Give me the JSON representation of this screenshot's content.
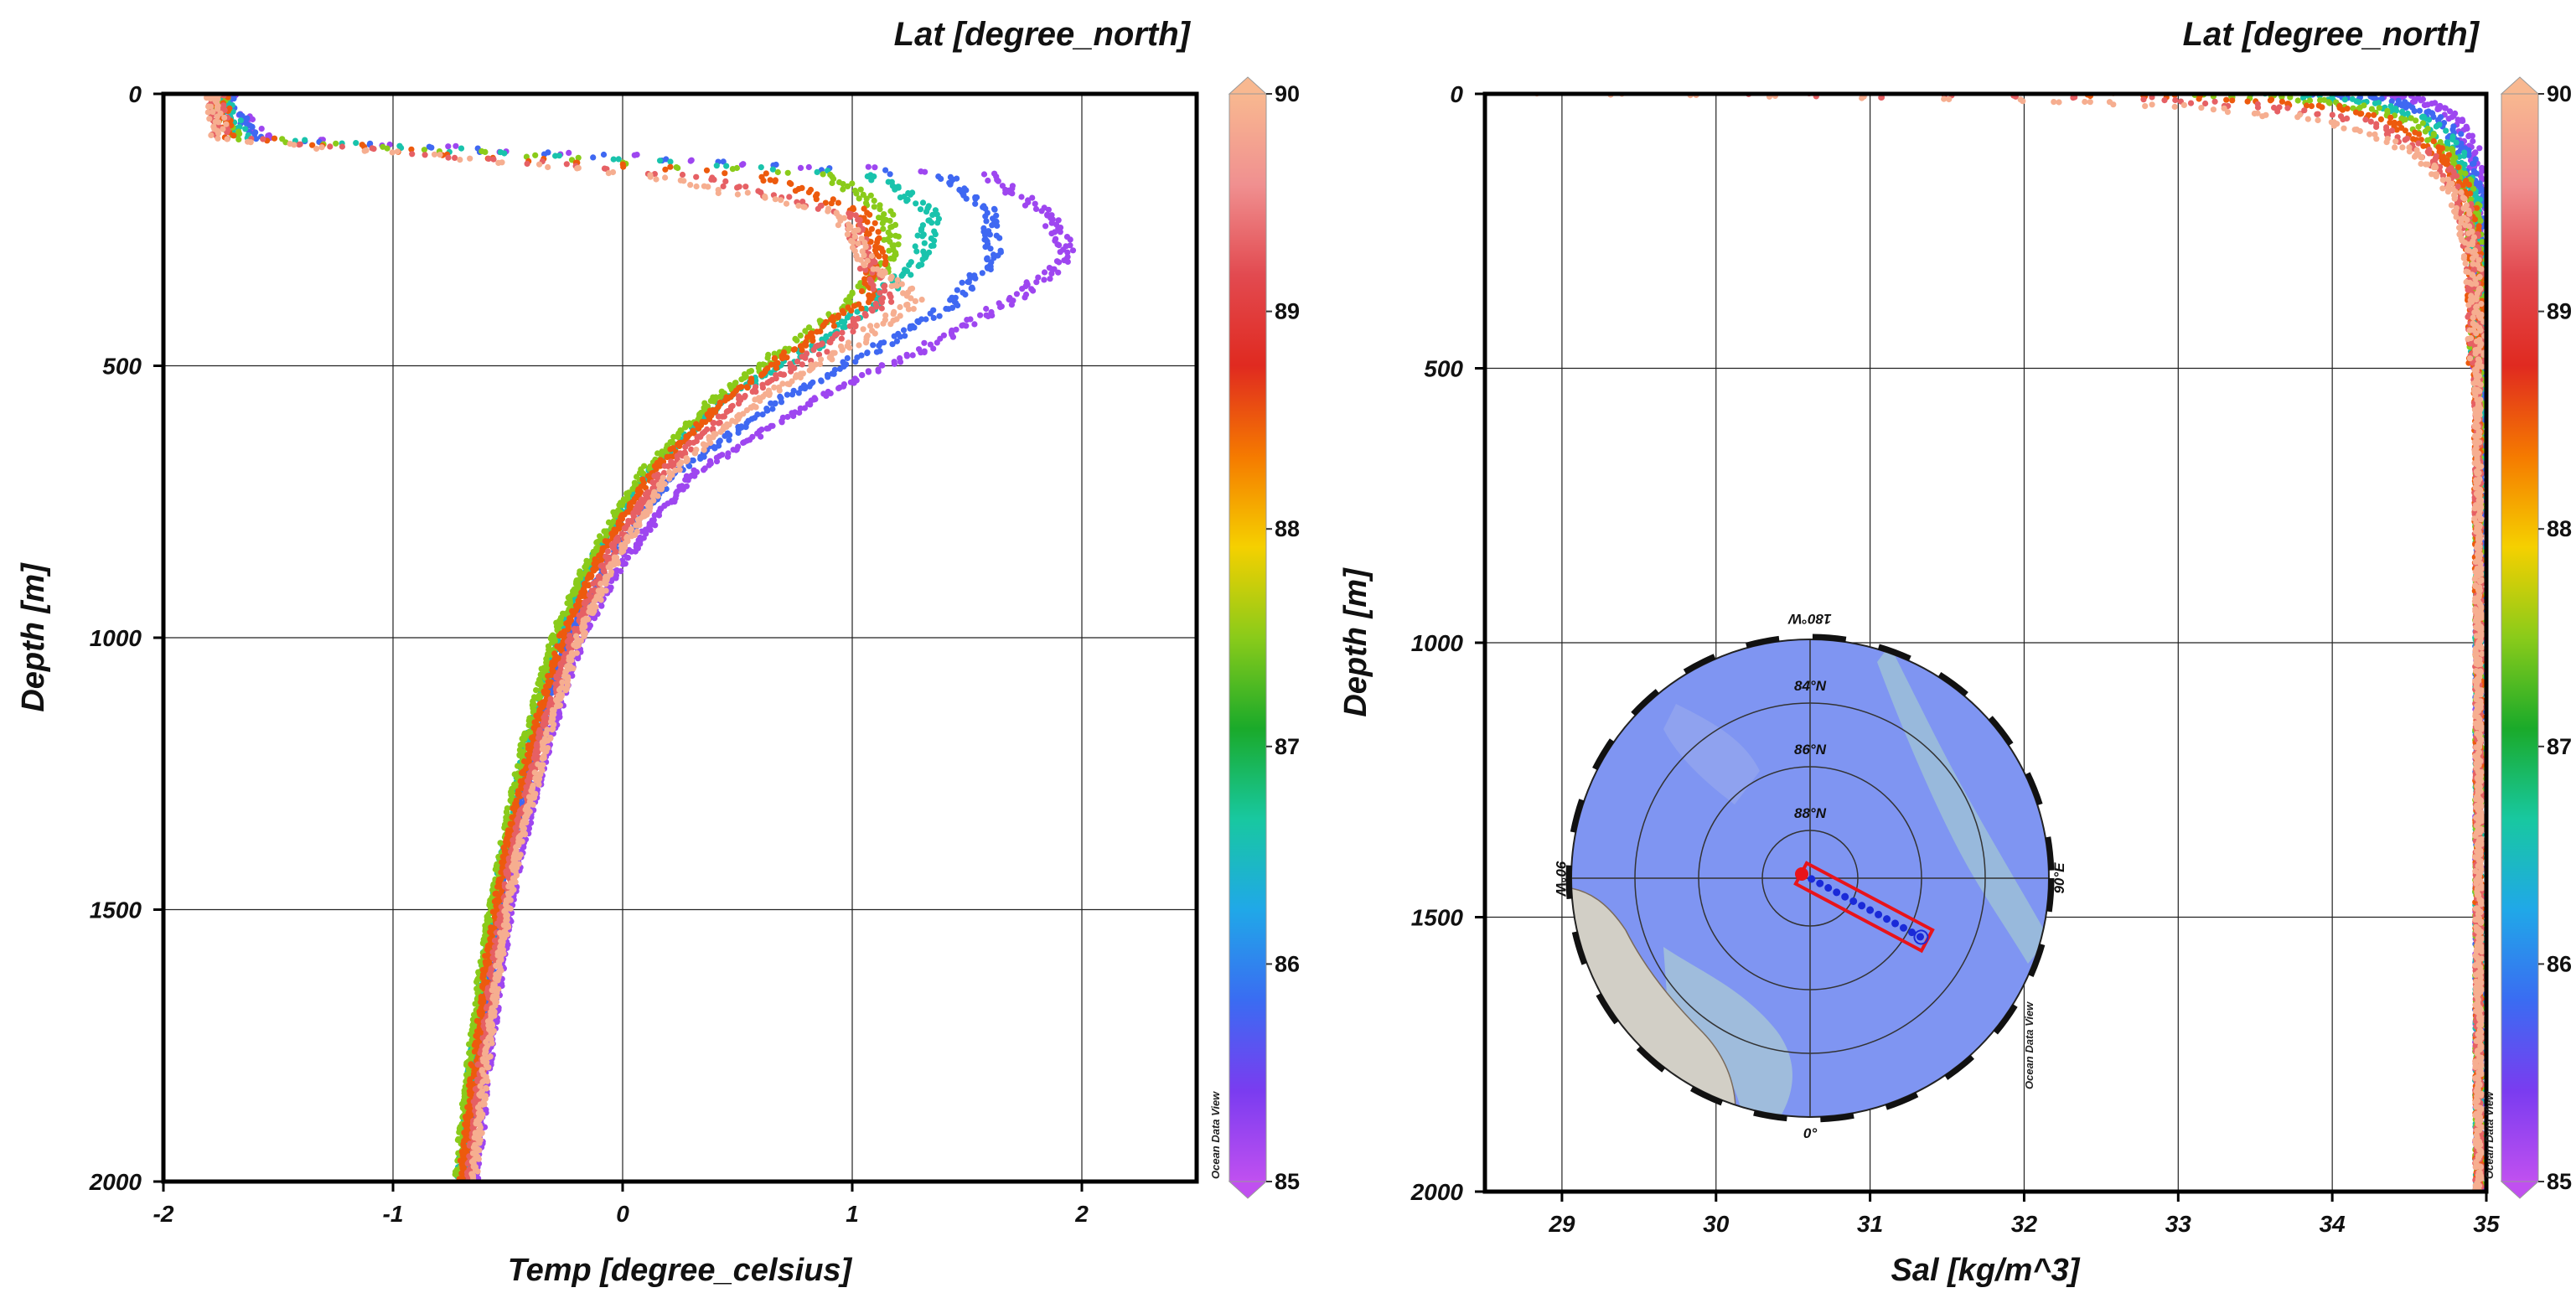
{
  "colorbar": {
    "label": "Lat [degree_north]",
    "min": 85,
    "max": 90,
    "ticks": [
      "85",
      "86",
      "87",
      "88",
      "89",
      "90"
    ],
    "stops": [
      "#c050f0",
      "#7a3cf0",
      "#3a6cf2",
      "#20a8e8",
      "#18c8a0",
      "#1aaa2a",
      "#8acb1a",
      "#f5d000",
      "#f57a00",
      "#e02a20",
      "#e24a50",
      "#f09090",
      "#f8b890"
    ]
  },
  "watermark": "Ocean Data View",
  "map": {
    "top_label": "180°W",
    "bottom_label": "0°",
    "left_label": "90°W",
    "right_label": "90°E",
    "ring_labels": [
      "84°N",
      "86°N",
      "88°N"
    ]
  },
  "chart_data": [
    {
      "type": "scatter",
      "title": "Lat [degree_north]",
      "xlabel": "Temp [degree_celsius]",
      "ylabel": "Depth [m]",
      "xlim": [
        -2,
        2.5
      ],
      "ylim": [
        2000,
        0
      ],
      "xticks": [
        "-2",
        "-1",
        "0",
        "1",
        "2"
      ],
      "yticks": [
        "0",
        "500",
        "1000",
        "1500",
        "2000"
      ],
      "grid": true,
      "color_by": "Lat [degree_north]",
      "series": [
        {
          "lat": 85.2,
          "depth": [
            0,
            30,
            80,
            150,
            220,
            300,
            380,
            460,
            560,
            700,
            850,
            1000,
            1200,
            1400,
            1600,
            1800,
            2000
          ],
          "values": [
            -1.72,
            -1.7,
            -1.55,
            1.6,
            1.85,
            1.95,
            1.7,
            1.35,
            0.85,
            0.3,
            0.02,
            -0.18,
            -0.33,
            -0.45,
            -0.53,
            -0.59,
            -0.64
          ]
        },
        {
          "lat": 85.8,
          "depth": [
            0,
            30,
            80,
            150,
            220,
            300,
            380,
            460,
            560,
            700,
            850,
            1000,
            1200,
            1400,
            1600,
            1800,
            2000
          ],
          "values": [
            -1.73,
            -1.72,
            -1.6,
            1.4,
            1.6,
            1.62,
            1.45,
            1.15,
            0.7,
            0.22,
            -0.05,
            -0.23,
            -0.38,
            -0.49,
            -0.57,
            -0.63,
            -0.68
          ]
        },
        {
          "lat": 86.6,
          "depth": [
            0,
            30,
            80,
            150,
            220,
            300,
            380,
            460,
            560,
            700,
            850,
            1000,
            1200,
            1400,
            1600,
            1800,
            2000
          ],
          "values": [
            -1.74,
            -1.73,
            -1.65,
            1.1,
            1.35,
            1.3,
            1.1,
            0.85,
            0.45,
            0.1,
            -0.12,
            -0.28,
            -0.42,
            -0.52,
            -0.6,
            -0.66,
            -0.71
          ]
        },
        {
          "lat": 87.5,
          "depth": [
            0,
            30,
            80,
            150,
            220,
            300,
            380,
            460,
            560,
            700,
            850,
            1000,
            1200,
            1400,
            1600,
            1800,
            2000
          ],
          "values": [
            -1.75,
            -1.74,
            -1.7,
            0.9,
            1.15,
            1.18,
            1.0,
            0.75,
            0.4,
            0.08,
            -0.14,
            -0.3,
            -0.43,
            -0.53,
            -0.61,
            -0.67,
            -0.72
          ]
        },
        {
          "lat": 88.5,
          "depth": [
            0,
            30,
            80,
            150,
            220,
            300,
            380,
            460,
            560,
            700,
            850,
            1000,
            1200,
            1400,
            1600,
            1800,
            2000
          ],
          "values": [
            -1.76,
            -1.75,
            -1.73,
            0.6,
            1.05,
            1.12,
            1.05,
            0.8,
            0.45,
            0.12,
            -0.1,
            -0.26,
            -0.4,
            -0.51,
            -0.59,
            -0.65,
            -0.7
          ]
        },
        {
          "lat": 89.3,
          "depth": [
            0,
            30,
            80,
            150,
            220,
            300,
            380,
            460,
            560,
            700,
            850,
            1000,
            1200,
            1400,
            1600,
            1800,
            2000
          ],
          "values": [
            -1.77,
            -1.76,
            -1.75,
            0.3,
            1.0,
            1.05,
            1.15,
            0.9,
            0.52,
            0.16,
            -0.06,
            -0.22,
            -0.37,
            -0.48,
            -0.56,
            -0.62,
            -0.67
          ]
        },
        {
          "lat": 89.9,
          "depth": [
            0,
            30,
            80,
            150,
            220,
            300,
            380,
            460,
            560,
            700,
            850,
            1000,
            1200,
            1400,
            1600,
            1800,
            2000
          ],
          "values": [
            -1.78,
            -1.77,
            -1.76,
            0.1,
            0.95,
            1.05,
            1.28,
            1.0,
            0.6,
            0.2,
            -0.02,
            -0.19,
            -0.34,
            -0.46,
            -0.54,
            -0.6,
            -0.65
          ]
        }
      ]
    },
    {
      "type": "scatter",
      "title": "Lat [degree_north]",
      "xlabel": "Sal [kg/m^3]",
      "ylabel": "Depth [m]",
      "xlim": [
        28.5,
        35
      ],
      "ylim": [
        2000,
        0
      ],
      "xticks": [
        "29",
        "30",
        "31",
        "32",
        "33",
        "34",
        "35"
      ],
      "yticks": [
        "0",
        "500",
        "1000",
        "1500",
        "2000"
      ],
      "grid": true,
      "color_by": "Lat [degree_north]",
      "series": [
        {
          "lat": 85.2,
          "depth": [
            0,
            10,
            25,
            50,
            100,
            150,
            200,
            300,
            500,
            1000,
            1500,
            2000
          ],
          "values": [
            34.3,
            34.55,
            34.7,
            34.82,
            34.9,
            34.93,
            34.95,
            34.97,
            34.96,
            34.95,
            34.95,
            34.95
          ]
        },
        {
          "lat": 85.8,
          "depth": [
            0,
            10,
            25,
            50,
            100,
            150,
            200,
            300,
            500,
            1000,
            1500,
            2000
          ],
          "values": [
            33.9,
            34.3,
            34.55,
            34.72,
            34.86,
            34.91,
            34.94,
            34.96,
            34.96,
            34.95,
            34.95,
            34.95
          ]
        },
        {
          "lat": 86.6,
          "depth": [
            0,
            10,
            25,
            50,
            100,
            150,
            200,
            300,
            500,
            1000,
            1500,
            2000
          ],
          "values": [
            33.5,
            34.05,
            34.38,
            34.62,
            34.8,
            34.88,
            34.92,
            34.95,
            34.95,
            34.95,
            34.95,
            34.95
          ]
        },
        {
          "lat": 87.5,
          "depth": [
            0,
            10,
            25,
            50,
            100,
            150,
            200,
            300,
            500,
            1000,
            1500,
            2000
          ],
          "values": [
            33.1,
            33.8,
            34.2,
            34.52,
            34.74,
            34.85,
            34.9,
            34.94,
            34.95,
            34.95,
            34.95,
            34.95
          ]
        },
        {
          "lat": 88.5,
          "depth": [
            0,
            10,
            25,
            50,
            100,
            150,
            200,
            300,
            500,
            1000,
            1500,
            2000
          ],
          "values": [
            32.4,
            33.5,
            34.0,
            34.4,
            34.68,
            34.81,
            34.88,
            34.93,
            34.94,
            34.95,
            34.95,
            34.95
          ]
        },
        {
          "lat": 89.3,
          "depth": [
            0,
            10,
            25,
            50,
            100,
            150,
            200,
            300,
            500,
            1000,
            1500,
            2000
          ],
          "values": [
            30.2,
            32.8,
            33.6,
            34.2,
            34.58,
            34.76,
            34.85,
            34.92,
            34.94,
            34.95,
            34.95,
            34.95
          ]
        },
        {
          "lat": 89.9,
          "depth": [
            0,
            10,
            25,
            50,
            100,
            150,
            200,
            300,
            500,
            1000,
            1500,
            2000
          ],
          "values": [
            28.8,
            32.0,
            33.2,
            34.0,
            34.5,
            34.72,
            34.83,
            34.91,
            34.94,
            34.95,
            34.95,
            34.95
          ]
        }
      ]
    }
  ]
}
